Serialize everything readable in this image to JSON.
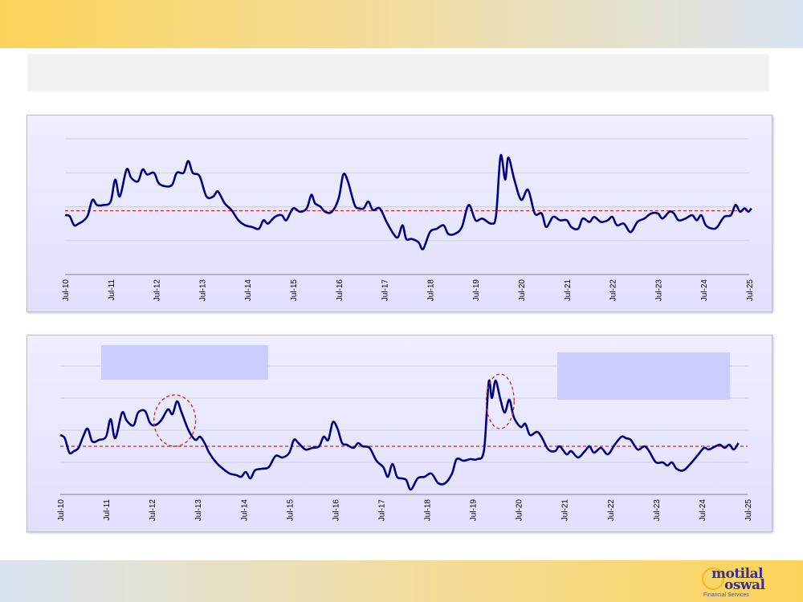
{
  "brand": {
    "logo_line1": "motilal",
    "logo_line2": "oswal",
    "logo_tagline": "Financial Services",
    "colors": {
      "top_band_left": "#fcd35a",
      "top_band_right": "#d9e4f2",
      "series": "#000080",
      "average": "#e02020"
    }
  },
  "title_text": "",
  "chart_data": [
    {
      "type": "line",
      "title": "",
      "xlabel": "",
      "ylabel": "",
      "grid": true,
      "x_tick_labels": [
        "Jul-10",
        "Jul-11",
        "Jul-12",
        "Jul-13",
        "Jul-14",
        "Jul-15",
        "Jul-16",
        "Jul-17",
        "Jul-18",
        "Jul-19",
        "Jul-20",
        "Jul-21",
        "Jul-22",
        "Jul-23",
        "Jul-24",
        "Jul-25"
      ],
      "x_range": [
        2010.5,
        2025.5
      ],
      "ylim": [
        0,
        4
      ],
      "gridlines": [
        1,
        2,
        3,
        4
      ],
      "average_line": 1.88,
      "series": [
        {
          "values": [
            [
              2010.5,
              1.75
            ],
            [
              2010.6,
              1.72
            ],
            [
              2010.7,
              1.45
            ],
            [
              2010.8,
              1.5
            ],
            [
              2010.9,
              1.58
            ],
            [
              2011.0,
              1.75
            ],
            [
              2011.1,
              2.2
            ],
            [
              2011.2,
              2.05
            ],
            [
              2011.35,
              2.05
            ],
            [
              2011.5,
              2.15
            ],
            [
              2011.6,
              2.8
            ],
            [
              2011.7,
              2.3
            ],
            [
              2011.85,
              3.1
            ],
            [
              2011.95,
              2.85
            ],
            [
              2012.1,
              2.75
            ],
            [
              2012.2,
              3.1
            ],
            [
              2012.3,
              2.95
            ],
            [
              2012.45,
              3.0
            ],
            [
              2012.55,
              2.7
            ],
            [
              2012.7,
              2.6
            ],
            [
              2012.85,
              2.65
            ],
            [
              2012.95,
              3.0
            ],
            [
              2013.1,
              3.0
            ],
            [
              2013.2,
              3.35
            ],
            [
              2013.3,
              3.0
            ],
            [
              2013.45,
              2.9
            ],
            [
              2013.6,
              2.3
            ],
            [
              2013.75,
              2.3
            ],
            [
              2013.85,
              2.45
            ],
            [
              2014.0,
              2.1
            ],
            [
              2014.15,
              1.9
            ],
            [
              2014.3,
              1.6
            ],
            [
              2014.45,
              1.45
            ],
            [
              2014.6,
              1.4
            ],
            [
              2014.75,
              1.35
            ],
            [
              2014.85,
              1.6
            ],
            [
              2014.95,
              1.5
            ],
            [
              2015.1,
              1.7
            ],
            [
              2015.25,
              1.75
            ],
            [
              2015.35,
              1.6
            ],
            [
              2015.5,
              1.95
            ],
            [
              2015.65,
              1.85
            ],
            [
              2015.8,
              1.95
            ],
            [
              2015.9,
              2.35
            ],
            [
              2015.98,
              2.1
            ],
            [
              2016.1,
              2.0
            ],
            [
              2016.2,
              1.85
            ],
            [
              2016.35,
              1.85
            ],
            [
              2016.5,
              2.25
            ],
            [
              2016.6,
              2.95
            ],
            [
              2016.7,
              2.75
            ],
            [
              2016.85,
              2.05
            ],
            [
              2016.95,
              1.95
            ],
            [
              2017.05,
              1.95
            ],
            [
              2017.15,
              2.15
            ],
            [
              2017.25,
              1.9
            ],
            [
              2017.4,
              1.95
            ],
            [
              2017.55,
              1.55
            ],
            [
              2017.7,
              1.2
            ],
            [
              2017.8,
              1.1
            ],
            [
              2017.9,
              1.45
            ],
            [
              2017.98,
              1.05
            ],
            [
              2018.1,
              1.05
            ],
            [
              2018.25,
              0.95
            ],
            [
              2018.35,
              0.75
            ],
            [
              2018.5,
              1.25
            ],
            [
              2018.65,
              1.35
            ],
            [
              2018.8,
              1.45
            ],
            [
              2018.9,
              1.2
            ],
            [
              2019.05,
              1.2
            ],
            [
              2019.2,
              1.4
            ],
            [
              2019.35,
              2.05
            ],
            [
              2019.5,
              1.6
            ],
            [
              2019.65,
              1.65
            ],
            [
              2019.85,
              1.5
            ],
            [
              2019.95,
              1.75
            ],
            [
              2020.05,
              3.5
            ],
            [
              2020.15,
              2.8
            ],
            [
              2020.22,
              3.45
            ],
            [
              2020.35,
              2.8
            ],
            [
              2020.5,
              2.2
            ],
            [
              2020.65,
              2.5
            ],
            [
              2020.8,
              1.8
            ],
            [
              2020.95,
              1.8
            ],
            [
              2021.05,
              1.4
            ],
            [
              2021.2,
              1.7
            ],
            [
              2021.35,
              1.6
            ],
            [
              2021.5,
              1.6
            ],
            [
              2021.6,
              1.4
            ],
            [
              2021.75,
              1.35
            ],
            [
              2021.85,
              1.65
            ],
            [
              2022.0,
              1.55
            ],
            [
              2022.1,
              1.7
            ],
            [
              2022.25,
              1.55
            ],
            [
              2022.4,
              1.6
            ],
            [
              2022.5,
              1.7
            ],
            [
              2022.6,
              1.45
            ],
            [
              2022.75,
              1.5
            ],
            [
              2022.9,
              1.25
            ],
            [
              2023.05,
              1.55
            ],
            [
              2023.2,
              1.65
            ],
            [
              2023.35,
              1.8
            ],
            [
              2023.5,
              1.8
            ],
            [
              2023.6,
              1.65
            ],
            [
              2023.75,
              1.85
            ],
            [
              2023.85,
              1.8
            ],
            [
              2023.95,
              1.6
            ],
            [
              2024.1,
              1.65
            ],
            [
              2024.25,
              1.75
            ],
            [
              2024.35,
              1.6
            ],
            [
              2024.45,
              1.75
            ],
            [
              2024.55,
              1.45
            ],
            [
              2024.7,
              1.35
            ],
            [
              2024.8,
              1.4
            ],
            [
              2024.95,
              1.7
            ],
            [
              2025.1,
              1.75
            ],
            [
              2025.2,
              2.05
            ],
            [
              2025.3,
              1.85
            ],
            [
              2025.4,
              1.95
            ],
            [
              2025.48,
              1.85
            ],
            [
              2025.55,
              1.95
            ]
          ]
        }
      ]
    },
    {
      "type": "line",
      "title": "",
      "xlabel": "",
      "ylabel": "",
      "grid": true,
      "x_tick_labels": [
        "Jul-10",
        "Jul-11",
        "Jul-12",
        "Jul-13",
        "Jul-14",
        "Jul-15",
        "Jul-16",
        "Jul-17",
        "Jul-18",
        "Jul-19",
        "Jul-20",
        "Jul-21",
        "Jul-22",
        "Jul-23",
        "Jul-24",
        "Jul-25"
      ],
      "x_range": [
        2010.5,
        2025.5
      ],
      "ylim": [
        0,
        4
      ],
      "gridlines": [
        1,
        2,
        3,
        4
      ],
      "average_line": 1.5,
      "annotations": [
        "",
        ""
      ],
      "highlight_periods": [
        [
          2012.65,
          2013.35
        ],
        [
          2019.9,
          2020.3
        ]
      ],
      "series": [
        {
          "values": [
            [
              2010.5,
              1.85
            ],
            [
              2010.6,
              1.75
            ],
            [
              2010.7,
              1.3
            ],
            [
              2010.8,
              1.35
            ],
            [
              2010.9,
              1.45
            ],
            [
              2011.0,
              1.8
            ],
            [
              2011.1,
              2.05
            ],
            [
              2011.2,
              1.65
            ],
            [
              2011.35,
              1.7
            ],
            [
              2011.5,
              1.8
            ],
            [
              2011.6,
              2.35
            ],
            [
              2011.7,
              1.75
            ],
            [
              2011.85,
              2.55
            ],
            [
              2011.95,
              2.3
            ],
            [
              2012.1,
              2.15
            ],
            [
              2012.2,
              2.55
            ],
            [
              2012.35,
              2.6
            ],
            [
              2012.45,
              2.25
            ],
            [
              2012.55,
              2.15
            ],
            [
              2012.7,
              2.3
            ],
            [
              2012.85,
              2.65
            ],
            [
              2012.95,
              2.5
            ],
            [
              2013.05,
              2.9
            ],
            [
              2013.15,
              2.55
            ],
            [
              2013.3,
              2.0
            ],
            [
              2013.45,
              1.7
            ],
            [
              2013.55,
              1.8
            ],
            [
              2013.65,
              1.6
            ],
            [
              2013.75,
              1.3
            ],
            [
              2013.9,
              1.0
            ],
            [
              2014.05,
              0.8
            ],
            [
              2014.2,
              0.65
            ],
            [
              2014.35,
              0.6
            ],
            [
              2014.45,
              0.55
            ],
            [
              2014.55,
              0.7
            ],
            [
              2014.65,
              0.5
            ],
            [
              2014.75,
              0.75
            ],
            [
              2014.9,
              0.8
            ],
            [
              2015.05,
              0.85
            ],
            [
              2015.2,
              1.2
            ],
            [
              2015.35,
              1.15
            ],
            [
              2015.5,
              1.3
            ],
            [
              2015.6,
              1.7
            ],
            [
              2015.7,
              1.6
            ],
            [
              2015.85,
              1.4
            ],
            [
              2016.0,
              1.45
            ],
            [
              2016.15,
              1.5
            ],
            [
              2016.25,
              1.8
            ],
            [
              2016.35,
              1.7
            ],
            [
              2016.45,
              2.25
            ],
            [
              2016.55,
              2.05
            ],
            [
              2016.65,
              1.6
            ],
            [
              2016.75,
              1.55
            ],
            [
              2016.9,
              1.45
            ],
            [
              2017.0,
              1.6
            ],
            [
              2017.1,
              1.5
            ],
            [
              2017.25,
              1.45
            ],
            [
              2017.4,
              1.05
            ],
            [
              2017.55,
              0.85
            ],
            [
              2017.65,
              0.55
            ],
            [
              2017.75,
              0.95
            ],
            [
              2017.85,
              0.55
            ],
            [
              2017.95,
              0.5
            ],
            [
              2018.05,
              0.45
            ],
            [
              2018.15,
              0.15
            ],
            [
              2018.3,
              0.5
            ],
            [
              2018.45,
              0.55
            ],
            [
              2018.6,
              0.65
            ],
            [
              2018.75,
              0.35
            ],
            [
              2018.9,
              0.35
            ],
            [
              2019.05,
              0.65
            ],
            [
              2019.15,
              1.1
            ],
            [
              2019.3,
              1.05
            ],
            [
              2019.45,
              1.1
            ],
            [
              2019.6,
              1.1
            ],
            [
              2019.75,
              1.4
            ],
            [
              2019.85,
              3.5
            ],
            [
              2019.92,
              3.0
            ],
            [
              2020.0,
              3.55
            ],
            [
              2020.1,
              3.0
            ],
            [
              2020.2,
              2.55
            ],
            [
              2020.3,
              2.95
            ],
            [
              2020.4,
              2.4
            ],
            [
              2020.55,
              2.1
            ],
            [
              2020.65,
              2.2
            ],
            [
              2020.75,
              1.85
            ],
            [
              2020.9,
              1.95
            ],
            [
              2021.0,
              1.8
            ],
            [
              2021.15,
              1.4
            ],
            [
              2021.3,
              1.35
            ],
            [
              2021.4,
              1.5
            ],
            [
              2021.55,
              1.25
            ],
            [
              2021.65,
              1.35
            ],
            [
              2021.8,
              1.15
            ],
            [
              2021.95,
              1.35
            ],
            [
              2022.05,
              1.5
            ],
            [
              2022.15,
              1.3
            ],
            [
              2022.3,
              1.45
            ],
            [
              2022.45,
              1.25
            ],
            [
              2022.6,
              1.55
            ],
            [
              2022.75,
              1.8
            ],
            [
              2022.85,
              1.75
            ],
            [
              2022.95,
              1.7
            ],
            [
              2023.1,
              1.4
            ],
            [
              2023.25,
              1.5
            ],
            [
              2023.35,
              1.35
            ],
            [
              2023.5,
              1.0
            ],
            [
              2023.65,
              1.0
            ],
            [
              2023.75,
              0.9
            ],
            [
              2023.85,
              1.0
            ],
            [
              2023.95,
              0.8
            ],
            [
              2024.1,
              0.75
            ],
            [
              2024.25,
              0.95
            ],
            [
              2024.4,
              1.2
            ],
            [
              2024.55,
              1.45
            ],
            [
              2024.65,
              1.4
            ],
            [
              2024.8,
              1.5
            ],
            [
              2024.9,
              1.55
            ],
            [
              2025.0,
              1.45
            ],
            [
              2025.1,
              1.55
            ],
            [
              2025.2,
              1.4
            ],
            [
              2025.3,
              1.6
            ]
          ]
        }
      ]
    }
  ]
}
